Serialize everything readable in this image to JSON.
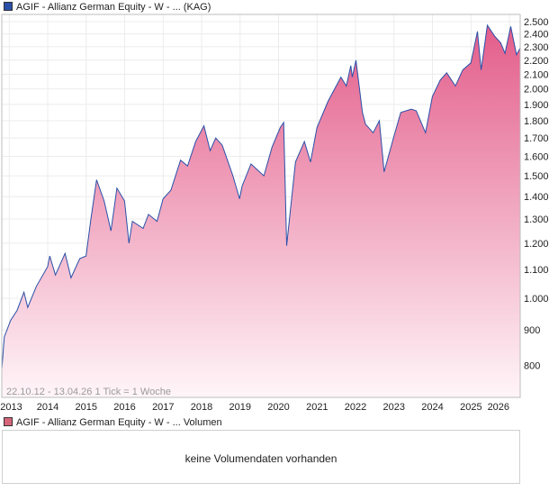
{
  "chart_data": {
    "type": "area",
    "series": [
      {
        "name": "AGIF - Allianz German Equity - W - ... (KAG)",
        "color": "#2a50a8",
        "fill_top": "#e35d8a",
        "fill_bottom": "#fff5f9",
        "points": [
          [
            "2012-10-22",
            790
          ],
          [
            "2012-11-15",
            880
          ],
          [
            "2013-01-15",
            930
          ],
          [
            "2013-03-15",
            960
          ],
          [
            "2013-05-20",
            1020
          ],
          [
            "2013-06-25",
            970
          ],
          [
            "2013-09-15",
            1040
          ],
          [
            "2013-12-31",
            1110
          ],
          [
            "2014-01-20",
            1150
          ],
          [
            "2014-03-15",
            1080
          ],
          [
            "2014-06-15",
            1160
          ],
          [
            "2014-08-10",
            1070
          ],
          [
            "2014-11-01",
            1140
          ],
          [
            "2014-12-31",
            1150
          ],
          [
            "2015-02-15",
            1300
          ],
          [
            "2015-04-10",
            1480
          ],
          [
            "2015-06-20",
            1380
          ],
          [
            "2015-08-24",
            1250
          ],
          [
            "2015-10-20",
            1440
          ],
          [
            "2015-12-31",
            1380
          ],
          [
            "2016-02-11",
            1200
          ],
          [
            "2016-03-15",
            1290
          ],
          [
            "2016-06-24",
            1260
          ],
          [
            "2016-08-15",
            1320
          ],
          [
            "2016-11-04",
            1290
          ],
          [
            "2016-12-31",
            1390
          ],
          [
            "2017-03-15",
            1430
          ],
          [
            "2017-06-15",
            1580
          ],
          [
            "2017-08-20",
            1550
          ],
          [
            "2017-11-05",
            1680
          ],
          [
            "2018-01-23",
            1770
          ],
          [
            "2018-03-23",
            1630
          ],
          [
            "2018-05-15",
            1700
          ],
          [
            "2018-07-15",
            1660
          ],
          [
            "2018-10-25",
            1500
          ],
          [
            "2018-12-27",
            1390
          ],
          [
            "2019-01-20",
            1450
          ],
          [
            "2019-04-15",
            1560
          ],
          [
            "2019-08-15",
            1500
          ],
          [
            "2019-11-01",
            1650
          ],
          [
            "2020-01-17",
            1760
          ],
          [
            "2020-02-19",
            1790
          ],
          [
            "2020-03-18",
            1190
          ],
          [
            "2020-06-10",
            1570
          ],
          [
            "2020-09-02",
            1680
          ],
          [
            "2020-10-30",
            1570
          ],
          [
            "2020-12-31",
            1760
          ],
          [
            "2021-04-15",
            1920
          ],
          [
            "2021-08-15",
            2080
          ],
          [
            "2021-10-05",
            2020
          ],
          [
            "2021-11-17",
            2160
          ],
          [
            "2021-12-01",
            2080
          ],
          [
            "2022-01-05",
            2200
          ],
          [
            "2022-03-07",
            1850
          ],
          [
            "2022-04-05",
            1780
          ],
          [
            "2022-06-17",
            1730
          ],
          [
            "2022-08-15",
            1800
          ],
          [
            "2022-09-29",
            1520
          ],
          [
            "2022-12-31",
            1710
          ],
          [
            "2023-03-06",
            1850
          ],
          [
            "2023-06-15",
            1870
          ],
          [
            "2023-07-31",
            1860
          ],
          [
            "2023-10-27",
            1730
          ],
          [
            "2023-12-31",
            1950
          ],
          [
            "2024-03-15",
            2060
          ],
          [
            "2024-05-15",
            2110
          ],
          [
            "2024-08-06",
            2020
          ],
          [
            "2024-10-15",
            2130
          ],
          [
            "2024-12-31",
            2180
          ],
          [
            "2025-03-03",
            2420
          ],
          [
            "2025-04-07",
            2130
          ],
          [
            "2025-06-05",
            2470
          ],
          [
            "2025-08-15",
            2380
          ],
          [
            "2025-10-10",
            2330
          ],
          [
            "2025-11-20",
            2250
          ],
          [
            "2026-01-13",
            2460
          ],
          [
            "2026-03-09",
            2240
          ],
          [
            "2026-04-13",
            2290
          ]
        ]
      }
    ],
    "x_ticks": [
      "2013",
      "2014",
      "2015",
      "2016",
      "2017",
      "2018",
      "2019",
      "2020",
      "2021",
      "2022",
      "2023",
      "2024",
      "2025",
      "2026"
    ],
    "y_ticks": [
      "800",
      "900",
      "1.000",
      "1.100",
      "1.200",
      "1.300",
      "1.400",
      "1.500",
      "1.600",
      "1.700",
      "1.800",
      "1.900",
      "2.000",
      "2.100",
      "2.200",
      "2.300",
      "2.400",
      "2.500"
    ],
    "y_tick_values": [
      800,
      900,
      1000,
      1100,
      1200,
      1300,
      1400,
      1500,
      1600,
      1700,
      1800,
      1900,
      2000,
      2100,
      2200,
      2300,
      2400,
      2500
    ],
    "xlim": [
      "2012-10-22",
      "2026-04-13"
    ],
    "ylim": [
      720,
      2560
    ],
    "scale": "log",
    "grid": true,
    "range_note": "22.10.12 - 13.04.26   1 Tick = 1 Woche"
  },
  "legend_top": {
    "label": "AGIF - Allianz German Equity - W - ... (KAG)",
    "swatch_color": "#2a50a8"
  },
  "legend_bottom": {
    "label": "AGIF - Allianz German Equity - W - ... Volumen",
    "swatch_color": "#d5657a"
  },
  "volume_panel": {
    "message": "keine Volumendaten vorhanden"
  }
}
